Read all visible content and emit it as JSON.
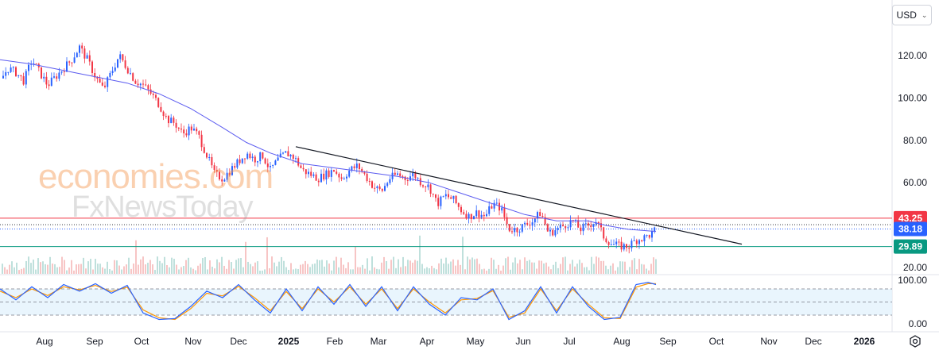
{
  "currency_selector": {
    "label": "USD"
  },
  "watermark": {
    "line1": "economies.com",
    "line2": "FxNewsToday"
  },
  "chart_data": {
    "type": "candlestick",
    "price_axis": {
      "ticks": [
        120,
        100,
        80,
        60,
        40,
        20
      ],
      "tick_labels": [
        "120.00",
        "100.00",
        "80.00",
        "60.00",
        "",
        "20.00"
      ]
    },
    "oscillator_axis": {
      "ticks": [
        100,
        0
      ],
      "tick_labels": [
        "100.00",
        "0.00"
      ],
      "bands": [
        80,
        50,
        20
      ]
    },
    "x_axis": {
      "labels": [
        {
          "text": "Aug",
          "bold": false
        },
        {
          "text": "Sep",
          "bold": false
        },
        {
          "text": "Oct",
          "bold": false
        },
        {
          "text": "Nov",
          "bold": false
        },
        {
          "text": "Dec",
          "bold": false
        },
        {
          "text": "2025",
          "bold": true
        },
        {
          "text": "Feb",
          "bold": false
        },
        {
          "text": "Mar",
          "bold": false
        },
        {
          "text": "Apr",
          "bold": false
        },
        {
          "text": "May",
          "bold": false
        },
        {
          "text": "Jun",
          "bold": false
        },
        {
          "text": "Jul",
          "bold": false
        },
        {
          "text": "Aug",
          "bold": false
        },
        {
          "text": "Sep",
          "bold": false
        },
        {
          "text": "Oct",
          "bold": false
        },
        {
          "text": "Nov",
          "bold": false
        },
        {
          "text": "Dec",
          "bold": false
        },
        {
          "text": "2026",
          "bold": true
        }
      ]
    },
    "levels": [
      {
        "value": 43.25,
        "label": "43.25",
        "color": "#f23645",
        "style": "solid"
      },
      {
        "value": 38.18,
        "label": "38.18",
        "color": "#2962ff",
        "style": "dotted"
      },
      {
        "value": 29.89,
        "label": "29.89",
        "color": "#089981",
        "style": "solid"
      }
    ],
    "price_path": [
      [
        0,
        108
      ],
      [
        10,
        114
      ],
      [
        20,
        112
      ],
      [
        30,
        108
      ],
      [
        40,
        118
      ],
      [
        50,
        112
      ],
      [
        60,
        106
      ],
      [
        70,
        110
      ],
      [
        80,
        114
      ],
      [
        90,
        118
      ],
      [
        100,
        124
      ],
      [
        110,
        118
      ],
      [
        120,
        110
      ],
      [
        130,
        104
      ],
      [
        140,
        112
      ],
      [
        150,
        120
      ],
      [
        160,
        114
      ],
      [
        170,
        108
      ],
      [
        180,
        106
      ],
      [
        190,
        102
      ],
      [
        200,
        97
      ],
      [
        210,
        90
      ],
      [
        220,
        88
      ],
      [
        230,
        83
      ],
      [
        240,
        86
      ],
      [
        250,
        82
      ],
      [
        260,
        73
      ],
      [
        270,
        64
      ],
      [
        280,
        62
      ],
      [
        290,
        66
      ],
      [
        300,
        70
      ],
      [
        310,
        74
      ],
      [
        320,
        71
      ],
      [
        330,
        73
      ],
      [
        340,
        66
      ],
      [
        350,
        71
      ],
      [
        360,
        74
      ],
      [
        370,
        72
      ],
      [
        380,
        66
      ],
      [
        390,
        64
      ],
      [
        400,
        62
      ],
      [
        410,
        64
      ],
      [
        420,
        66
      ],
      [
        430,
        62
      ],
      [
        440,
        66
      ],
      [
        450,
        68
      ],
      [
        460,
        63
      ],
      [
        470,
        58
      ],
      [
        480,
        56
      ],
      [
        490,
        62
      ],
      [
        500,
        64
      ],
      [
        510,
        62
      ],
      [
        520,
        64
      ],
      [
        530,
        60
      ],
      [
        540,
        58
      ],
      [
        550,
        50
      ],
      [
        560,
        54
      ],
      [
        570,
        52
      ],
      [
        580,
        47
      ],
      [
        590,
        44
      ],
      [
        600,
        46
      ],
      [
        610,
        44
      ],
      [
        620,
        50
      ],
      [
        630,
        48
      ],
      [
        640,
        38
      ],
      [
        650,
        38
      ],
      [
        660,
        40
      ],
      [
        670,
        42
      ],
      [
        680,
        46
      ],
      [
        690,
        36
      ],
      [
        700,
        38
      ],
      [
        710,
        40
      ],
      [
        720,
        42
      ],
      [
        730,
        38
      ],
      [
        740,
        40
      ],
      [
        750,
        42
      ],
      [
        760,
        34
      ],
      [
        770,
        31
      ],
      [
        780,
        30
      ],
      [
        790,
        30
      ],
      [
        800,
        33
      ],
      [
        810,
        34
      ],
      [
        820,
        36
      ],
      [
        825,
        38
      ]
    ],
    "moving_average": [
      [
        0,
        118
      ],
      [
        40,
        116
      ],
      [
        80,
        113
      ],
      [
        120,
        110
      ],
      [
        160,
        107
      ],
      [
        200,
        102
      ],
      [
        240,
        95
      ],
      [
        280,
        86
      ],
      [
        310,
        79
      ],
      [
        340,
        74
      ],
      [
        380,
        69
      ],
      [
        420,
        67
      ],
      [
        460,
        65
      ],
      [
        500,
        63
      ],
      [
        540,
        60
      ],
      [
        580,
        55
      ],
      [
        620,
        50
      ],
      [
        660,
        45
      ],
      [
        700,
        42
      ],
      [
        740,
        42
      ],
      [
        760,
        40
      ],
      [
        790,
        38
      ],
      [
        825,
        37
      ]
    ],
    "trendline": {
      "from": [
        372,
        77
      ],
      "to": [
        933,
        31
      ]
    },
    "oscillator_line_1": [
      [
        0,
        80
      ],
      [
        20,
        55
      ],
      [
        40,
        85
      ],
      [
        60,
        60
      ],
      [
        80,
        90
      ],
      [
        100,
        75
      ],
      [
        120,
        92
      ],
      [
        140,
        70
      ],
      [
        160,
        88
      ],
      [
        180,
        25
      ],
      [
        200,
        10
      ],
      [
        220,
        12
      ],
      [
        240,
        40
      ],
      [
        260,
        75
      ],
      [
        280,
        60
      ],
      [
        300,
        90
      ],
      [
        320,
        55
      ],
      [
        340,
        25
      ],
      [
        360,
        80
      ],
      [
        380,
        30
      ],
      [
        400,
        85
      ],
      [
        420,
        45
      ],
      [
        440,
        90
      ],
      [
        460,
        40
      ],
      [
        480,
        85
      ],
      [
        500,
        30
      ],
      [
        520,
        85
      ],
      [
        540,
        45
      ],
      [
        560,
        20
      ],
      [
        580,
        60
      ],
      [
        600,
        55
      ],
      [
        620,
        80
      ],
      [
        640,
        10
      ],
      [
        660,
        30
      ],
      [
        680,
        85
      ],
      [
        700,
        25
      ],
      [
        720,
        85
      ],
      [
        740,
        40
      ],
      [
        760,
        10
      ],
      [
        780,
        15
      ],
      [
        800,
        90
      ],
      [
        815,
        95
      ],
      [
        825,
        90
      ]
    ],
    "oscillator_line_2": [
      [
        0,
        75
      ],
      [
        20,
        60
      ],
      [
        40,
        80
      ],
      [
        60,
        65
      ],
      [
        80,
        85
      ],
      [
        100,
        78
      ],
      [
        120,
        88
      ],
      [
        140,
        74
      ],
      [
        160,
        84
      ],
      [
        180,
        32
      ],
      [
        200,
        14
      ],
      [
        220,
        10
      ],
      [
        240,
        35
      ],
      [
        260,
        70
      ],
      [
        280,
        64
      ],
      [
        300,
        86
      ],
      [
        320,
        60
      ],
      [
        340,
        30
      ],
      [
        360,
        74
      ],
      [
        380,
        35
      ],
      [
        400,
        80
      ],
      [
        420,
        50
      ],
      [
        440,
        85
      ],
      [
        460,
        45
      ],
      [
        480,
        80
      ],
      [
        500,
        35
      ],
      [
        520,
        80
      ],
      [
        540,
        50
      ],
      [
        560,
        25
      ],
      [
        580,
        55
      ],
      [
        600,
        58
      ],
      [
        620,
        76
      ],
      [
        640,
        15
      ],
      [
        660,
        25
      ],
      [
        680,
        80
      ],
      [
        700,
        30
      ],
      [
        720,
        80
      ],
      [
        740,
        45
      ],
      [
        760,
        14
      ],
      [
        780,
        12
      ],
      [
        800,
        84
      ],
      [
        815,
        92
      ],
      [
        825,
        92
      ]
    ]
  }
}
